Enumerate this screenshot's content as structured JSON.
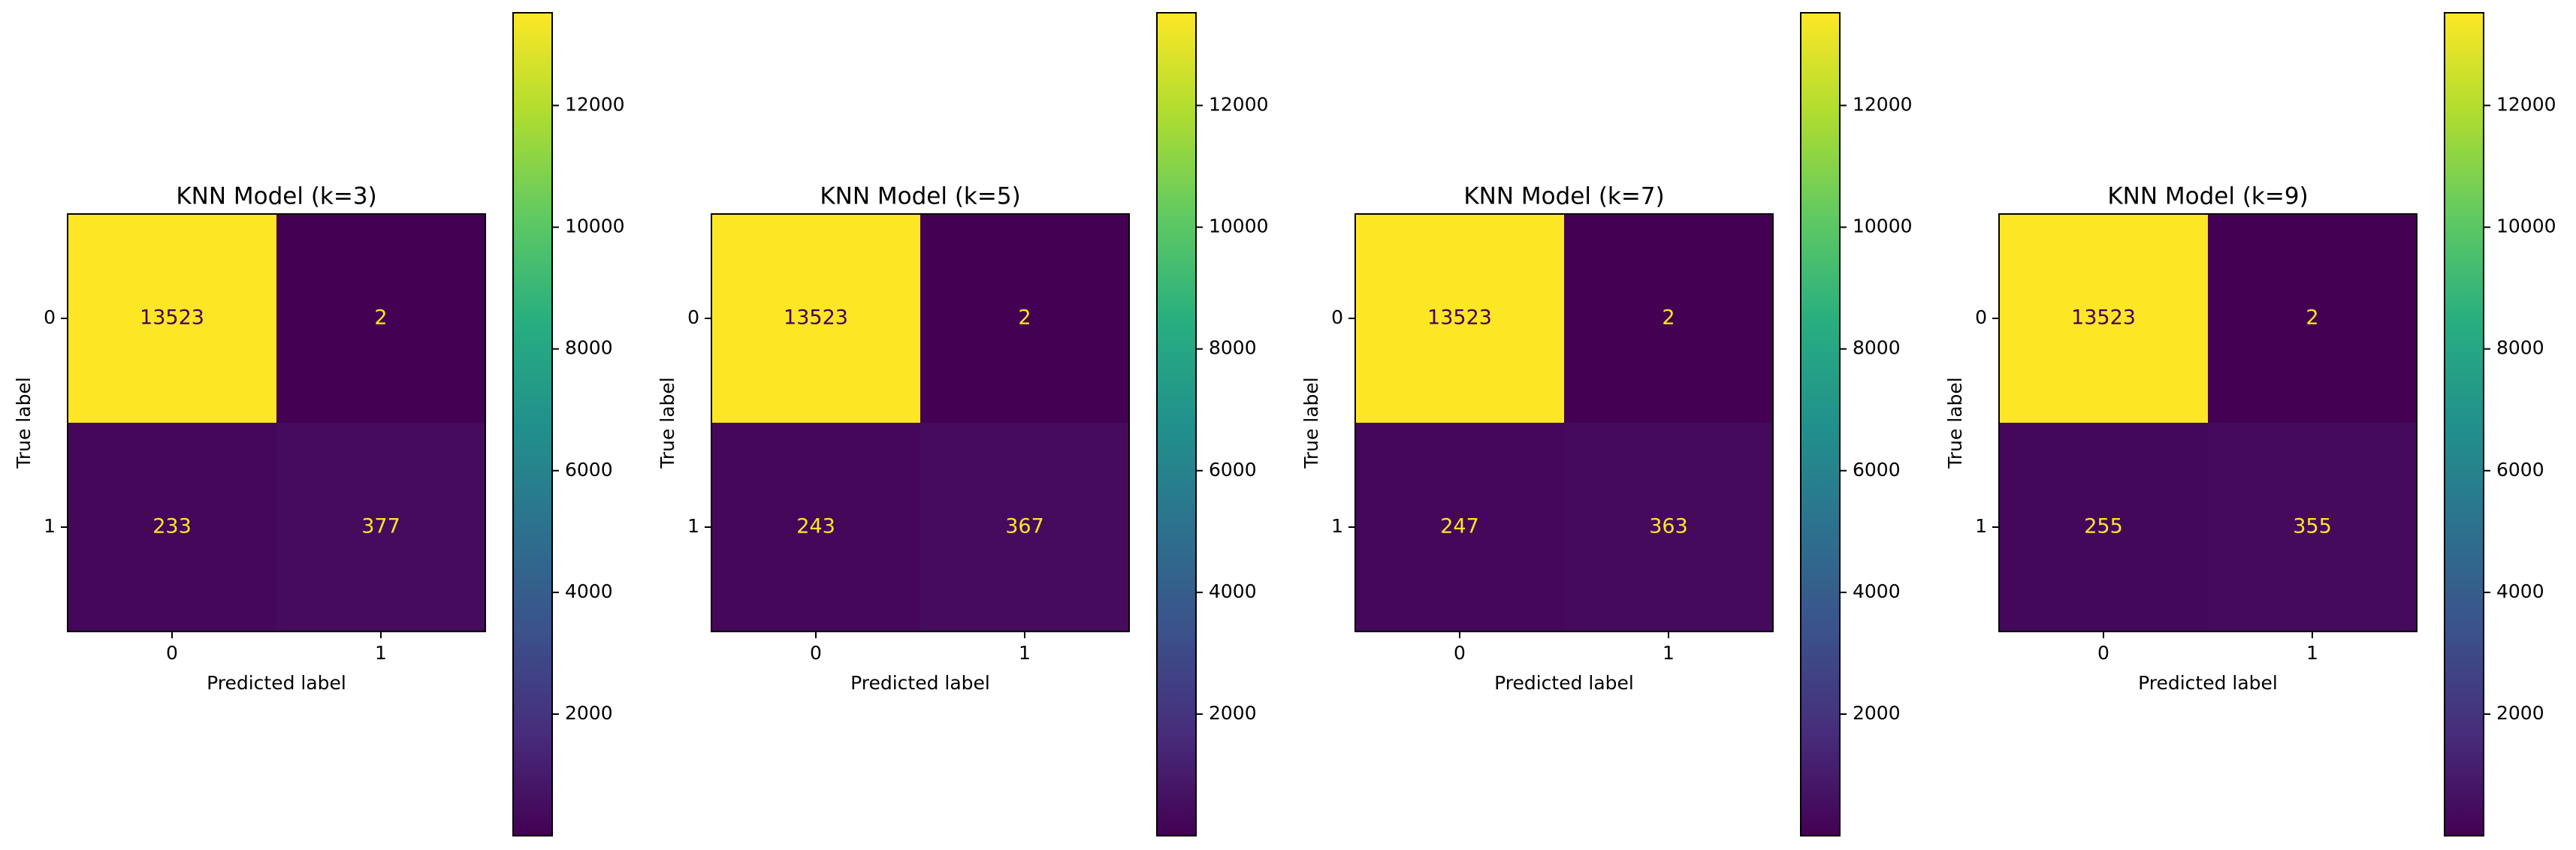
{
  "chart_data": [
    {
      "type": "heatmap",
      "title": "KNN Model (k=3)",
      "xlabel": "Predicted label",
      "ylabel": "True label",
      "x_categories": [
        "0",
        "1"
      ],
      "y_categories": [
        "0",
        "1"
      ],
      "matrix": [
        [
          13523,
          2
        ],
        [
          233,
          377
        ]
      ],
      "colormap": "viridis",
      "colorbar": {
        "range": [
          2,
          13523
        ],
        "ticks": [
          2000,
          4000,
          6000,
          8000,
          10000,
          12000
        ]
      }
    },
    {
      "type": "heatmap",
      "title": "KNN Model (k=5)",
      "xlabel": "Predicted label",
      "ylabel": "True label",
      "x_categories": [
        "0",
        "1"
      ],
      "y_categories": [
        "0",
        "1"
      ],
      "matrix": [
        [
          13523,
          2
        ],
        [
          243,
          367
        ]
      ],
      "colormap": "viridis",
      "colorbar": {
        "range": [
          2,
          13523
        ],
        "ticks": [
          2000,
          4000,
          6000,
          8000,
          10000,
          12000
        ]
      }
    },
    {
      "type": "heatmap",
      "title": "KNN Model (k=7)",
      "xlabel": "Predicted label",
      "ylabel": "True label",
      "x_categories": [
        "0",
        "1"
      ],
      "y_categories": [
        "0",
        "1"
      ],
      "matrix": [
        [
          13523,
          2
        ],
        [
          247,
          363
        ]
      ],
      "colormap": "viridis",
      "colorbar": {
        "range": [
          2,
          13523
        ],
        "ticks": [
          2000,
          4000,
          6000,
          8000,
          10000,
          12000
        ]
      }
    },
    {
      "type": "heatmap",
      "title": "KNN Model (k=9)",
      "xlabel": "Predicted label",
      "ylabel": "True label",
      "x_categories": [
        "0",
        "1"
      ],
      "y_categories": [
        "0",
        "1"
      ],
      "matrix": [
        [
          13523,
          2
        ],
        [
          255,
          355
        ]
      ],
      "colormap": "viridis",
      "colorbar": {
        "range": [
          2,
          13523
        ],
        "ticks": [
          2000,
          4000,
          6000,
          8000,
          10000,
          12000
        ]
      }
    }
  ]
}
